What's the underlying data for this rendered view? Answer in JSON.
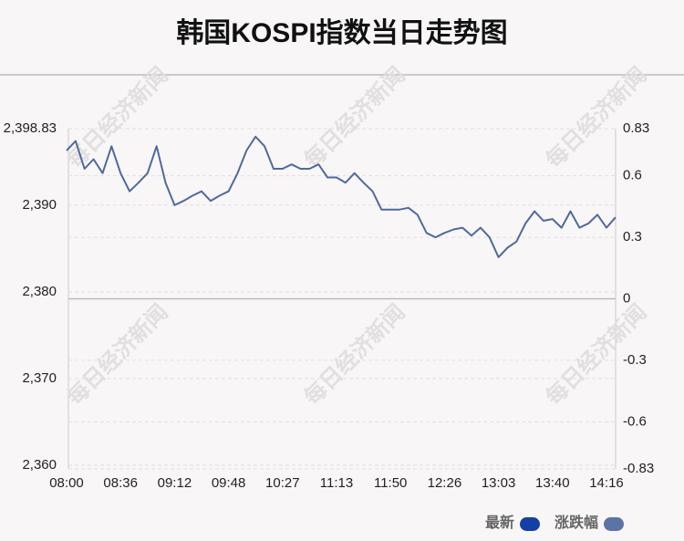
{
  "chart_data": {
    "type": "line",
    "title": "韩国KOSPI指数当日走势图",
    "watermark": "每日经济新闻",
    "categories": [
      "08:00",
      null,
      null,
      null,
      null,
      null,
      "08:36",
      null,
      null,
      null,
      null,
      null,
      "09:12",
      null,
      null,
      null,
      null,
      null,
      "09:48",
      null,
      null,
      null,
      null,
      null,
      "10:27",
      null,
      null,
      null,
      null,
      null,
      "11:13",
      null,
      null,
      null,
      null,
      null,
      "11:50",
      null,
      null,
      null,
      null,
      null,
      "12:26",
      null,
      null,
      null,
      null,
      null,
      "13:03",
      null,
      null,
      null,
      null,
      null,
      "13:40",
      null,
      null,
      null,
      null,
      null,
      "14:16",
      null
    ],
    "series": [
      {
        "color": "#4e6a9c",
        "values": [
          2396.3,
          2397.4,
          2394.2,
          2395.3,
          2393.7,
          2396.8,
          2393.7,
          2391.6,
          2392.6,
          2393.7,
          2396.8,
          2392.6,
          2390.0,
          2390.5,
          2391.1,
          2391.6,
          2390.5,
          2391.1,
          2391.6,
          2393.7,
          2396.3,
          2397.9,
          2396.8,
          2394.2,
          2394.2,
          2394.7,
          2394.2,
          2394.2,
          2394.7,
          2393.2,
          2393.2,
          2392.6,
          2393.7,
          2392.6,
          2391.6,
          2389.5,
          2389.5,
          2389.5,
          2389.7,
          2388.9,
          2386.8,
          2386.3,
          2386.8,
          2387.2,
          2387.4,
          2386.5,
          2387.4,
          2386.3,
          2384.0,
          2385.1,
          2385.8,
          2387.9,
          2389.3,
          2388.2,
          2388.4,
          2387.4,
          2389.3,
          2387.4,
          2387.9,
          2388.9,
          2387.4,
          2388.6
        ]
      }
    ],
    "legend": [
      {
        "name": "最新",
        "color": "#1440a6"
      },
      {
        "name": "涨跌幅",
        "color": "#5b74a6"
      }
    ],
    "ylim": [
      2360,
      2398.83
    ],
    "yticks": [
      {
        "value": 2360,
        "label": "2,360"
      },
      {
        "value": 2370,
        "label": "2,370"
      },
      {
        "value": 2380,
        "label": "2,380"
      },
      {
        "value": 2390,
        "label": "2,390"
      },
      {
        "value": 2398.83,
        "label": "2,398.83"
      }
    ],
    "y2lim": [
      -0.83,
      0.83
    ],
    "y2ticks": [
      -0.83,
      -0.6,
      -0.3,
      0,
      0.3,
      0.6,
      0.83
    ],
    "grid": true
  }
}
